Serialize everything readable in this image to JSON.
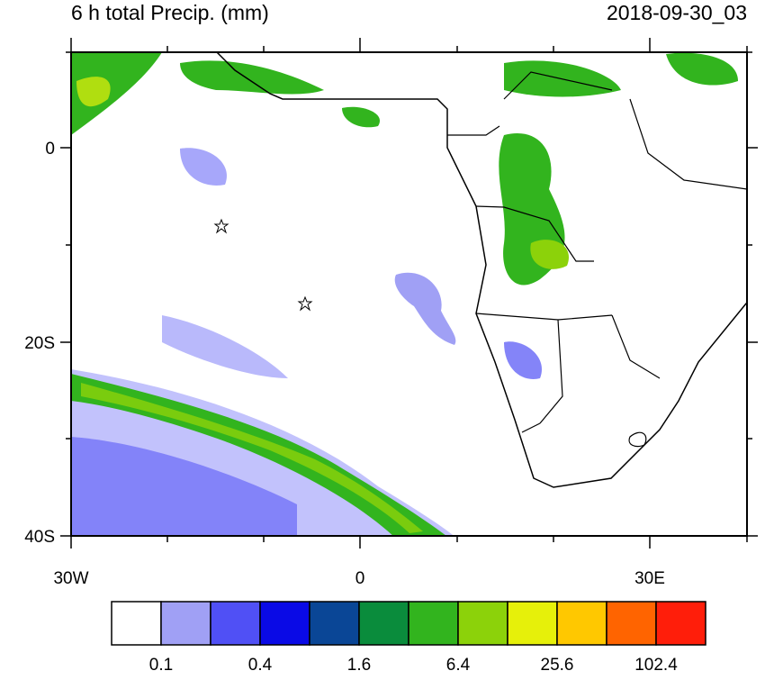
{
  "header": {
    "title": "6 h total Precip. (mm)",
    "timestamp": "2018-09-30_03"
  },
  "map": {
    "lat_labels": [
      "0",
      "20S",
      "40S"
    ],
    "lon_labels": [
      "30W",
      "0",
      "30E"
    ]
  },
  "colorbar": {
    "colors": [
      "#ffffff",
      "#a0a0f5",
      "#5050f5",
      "#0a0ae6",
      "#0a4696",
      "#0a8c3c",
      "#32b41e",
      "#8cd20a",
      "#e6f00a",
      "#ffc800",
      "#ff6400",
      "#ff1e0a"
    ],
    "labels": [
      0.1,
      0.4,
      1.6,
      6.4,
      25.6,
      102.4
    ]
  }
}
